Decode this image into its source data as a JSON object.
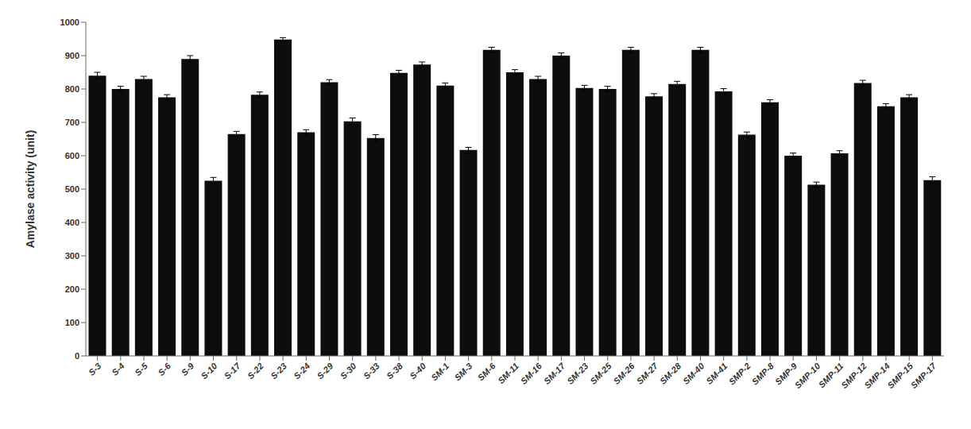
{
  "chart_data": {
    "type": "bar",
    "ylabel": "Amylase activity (unit)",
    "categories": [
      "S-3",
      "S-4",
      "S-5",
      "S-6",
      "S-9",
      "S-10",
      "S-17",
      "S-22",
      "S-23",
      "S-24",
      "S-29",
      "S-30",
      "S-33",
      "S-38",
      "S-40",
      "SM-1",
      "SM-3",
      "SM-6",
      "SM-11",
      "SM-16",
      "SM-17",
      "SM-23",
      "SM-25",
      "SM-26",
      "SM-27",
      "SM-28",
      "SM-40",
      "SM-41",
      "SMP-2",
      "SMP-8",
      "SMP-9",
      "SMP-10",
      "SMP-11",
      "SMP-12",
      "SMP-14",
      "SMP-15",
      "SMP-17"
    ],
    "values": [
      840,
      800,
      830,
      775,
      890,
      525,
      665,
      783,
      948,
      670,
      820,
      703,
      653,
      848,
      873,
      810,
      617,
      917,
      850,
      830,
      900,
      803,
      800,
      917,
      778,
      815,
      917,
      793,
      663,
      760,
      600,
      513,
      607,
      818,
      748,
      775,
      527
    ],
    "errors": [
      10,
      8,
      8,
      8,
      10,
      10,
      8,
      8,
      6,
      8,
      8,
      10,
      10,
      8,
      8,
      8,
      8,
      8,
      8,
      8,
      8,
      8,
      8,
      8,
      8,
      8,
      8,
      8,
      8,
      8,
      8,
      8,
      8,
      8,
      8,
      8,
      10
    ],
    "color": "#0d0d0d",
    "ylim": [
      0,
      1000
    ],
    "yticks": [
      0,
      100,
      200,
      300,
      400,
      500,
      600,
      700,
      800,
      900,
      1000
    ],
    "grid": false
  }
}
